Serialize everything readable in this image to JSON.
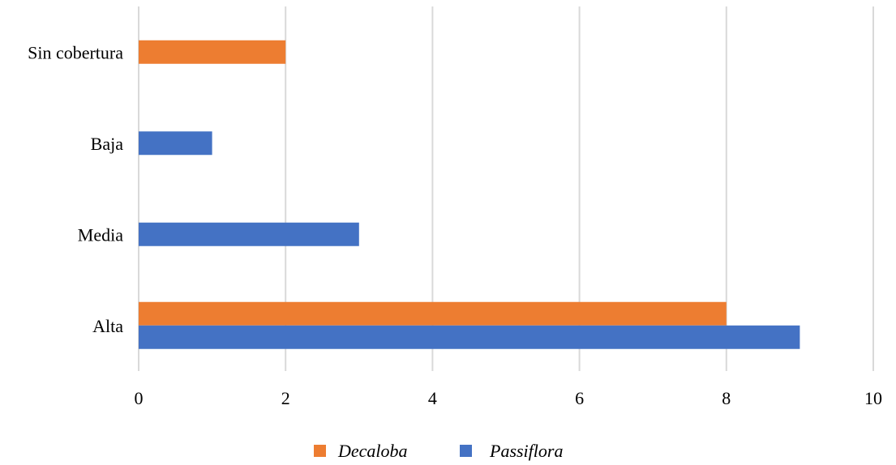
{
  "chart_data": {
    "type": "bar",
    "orientation": "horizontal",
    "categories": [
      "Sin cobertura",
      "Baja",
      "Media",
      "Alta"
    ],
    "series": [
      {
        "name": "Decaloba",
        "color": "#ed7d31",
        "values": [
          2,
          null,
          null,
          8
        ]
      },
      {
        "name": "Passiflora",
        "color": "#4472c4",
        "values": [
          null,
          1,
          3,
          9
        ]
      }
    ],
    "xticks": [
      "0",
      "2",
      "4",
      "6",
      "8",
      "10"
    ],
    "xlim": [
      0,
      10
    ],
    "grid": true,
    "legend": "bottom",
    "title": "",
    "xlabel": "",
    "ylabel": ""
  }
}
